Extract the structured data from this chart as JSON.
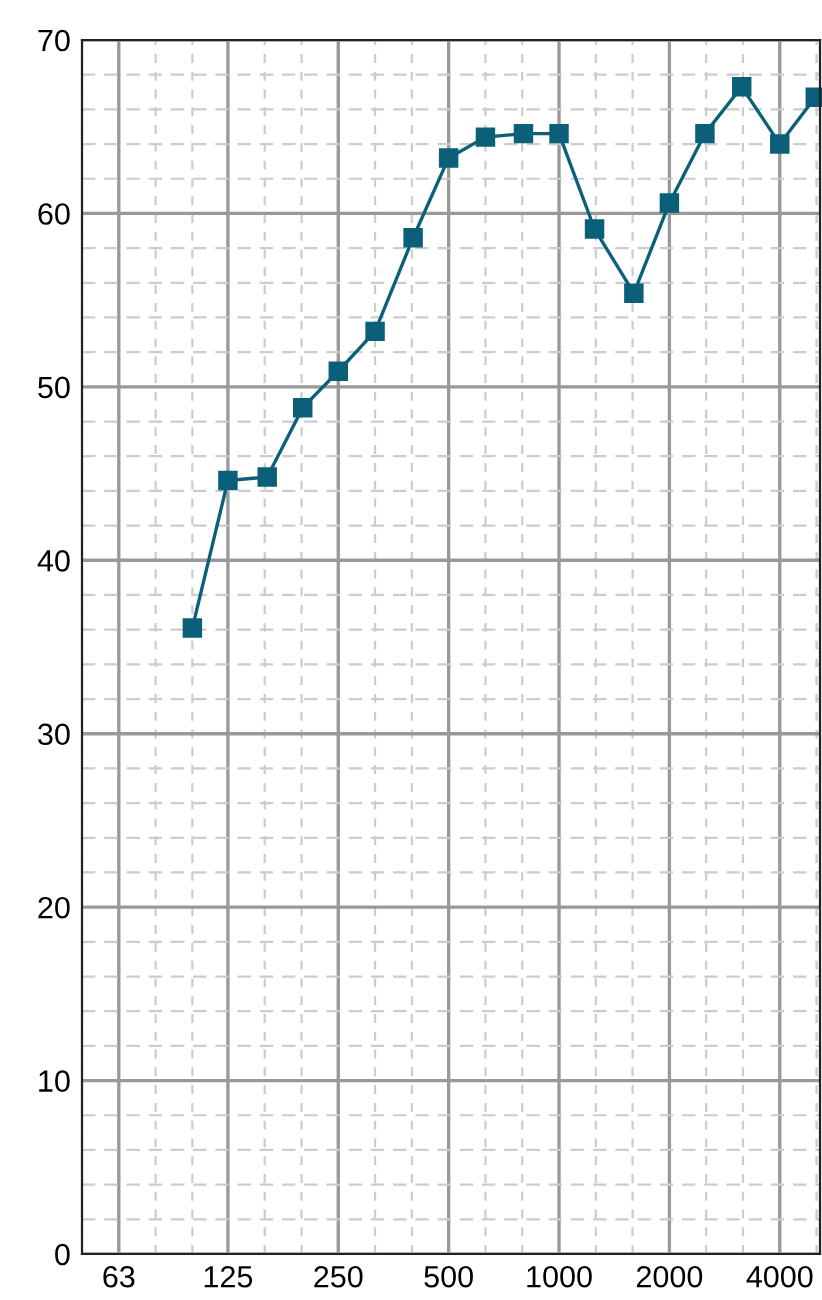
{
  "chart_data": {
    "type": "line",
    "log": "x",
    "x": [
      100,
      125,
      160,
      200,
      250,
      315,
      400,
      500,
      630,
      800,
      1000,
      1250,
      1600,
      2000,
      2500,
      3150,
      4000,
      5000
    ],
    "series": [
      {
        "color": "#0b5f78",
        "values": [
          36.1,
          44.6,
          44.8,
          48.8,
          50.9,
          53.2,
          58.6,
          63.2,
          64.4,
          64.6,
          64.6,
          59.1,
          55.4,
          60.6,
          64.6,
          67.3,
          64.0,
          66.7
        ]
      }
    ],
    "xlim": [
      50,
      5150
    ],
    "xticks": [
      63,
      125,
      250,
      500,
      1000,
      2000,
      4000
    ],
    "ylim": [
      0,
      70
    ],
    "yticks": [
      0,
      10,
      20,
      30,
      40,
      50,
      60,
      70
    ],
    "grid": true,
    "marker": "square",
    "line_style": "solid",
    "legend": false
  }
}
